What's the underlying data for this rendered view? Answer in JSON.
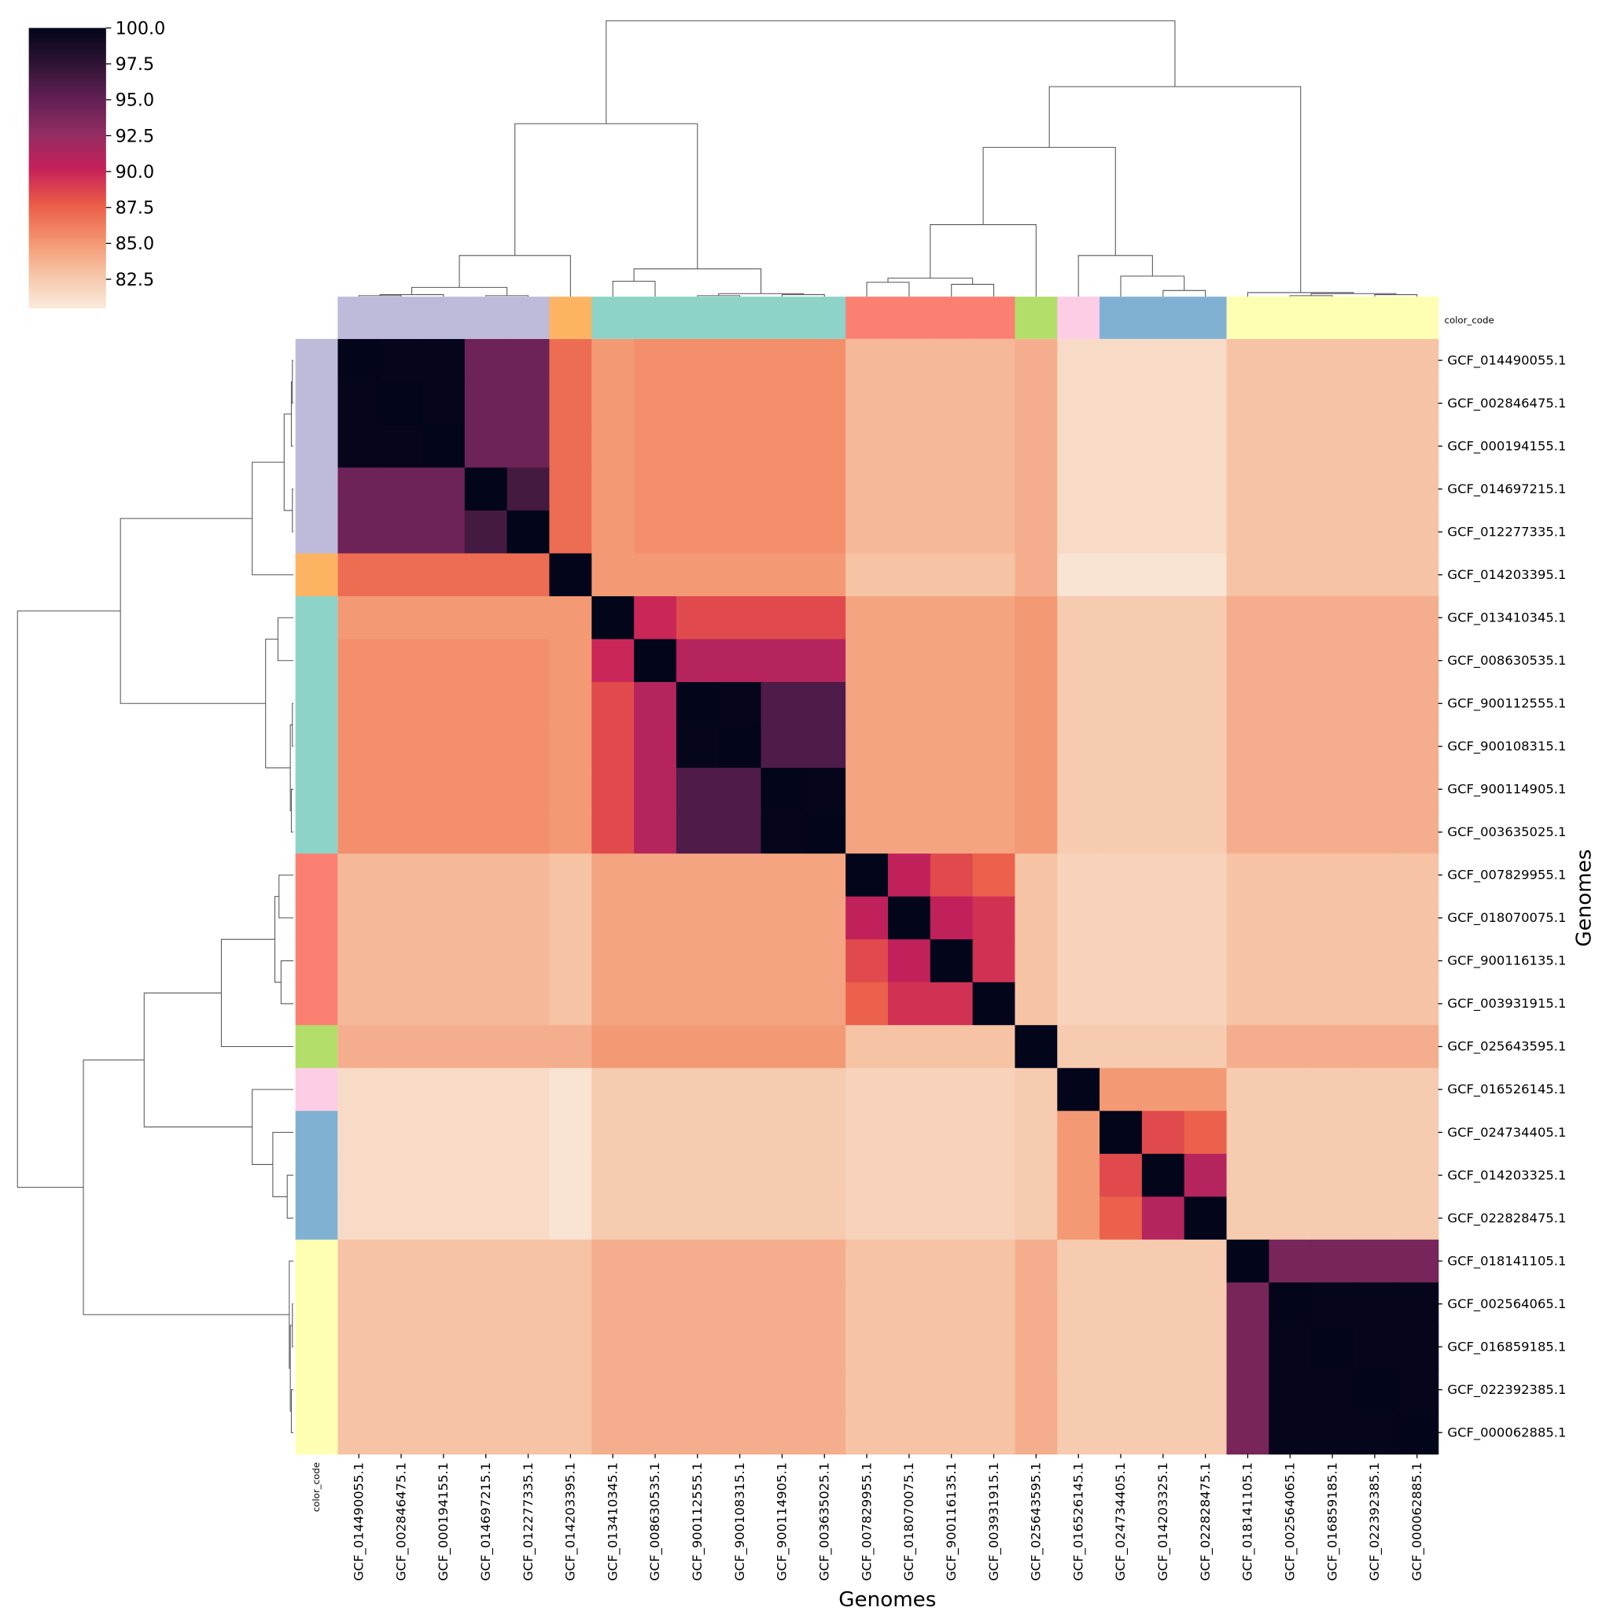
{
  "chart_data": {
    "type": "heatmap",
    "xlabel": "Genomes",
    "ylabel": "Genomes",
    "color_code_label": "color_code",
    "labels": [
      "GCF_014490055.1",
      "GCF_002846475.1",
      "GCF_000194155.1",
      "GCF_014697215.1",
      "GCF_012277335.1",
      "GCF_014203395.1",
      "GCF_013410345.1",
      "GCF_008630535.1",
      "GCF_900112555.1",
      "GCF_900108315.1",
      "GCF_900114905.1",
      "GCF_003635025.1",
      "GCF_007829955.1",
      "GCF_018070075.1",
      "GCF_900116135.1",
      "GCF_003931915.1",
      "GCF_025643595.1",
      "GCF_016526145.1",
      "GCF_024734405.1",
      "GCF_014203325.1",
      "GCF_022828475.1",
      "GCF_018141105.1",
      "GCF_002564065.1",
      "GCF_016859185.1",
      "GCF_022392385.1",
      "GCF_000062885.1"
    ],
    "group_colors": [
      "#bebada",
      "#bebada",
      "#bebada",
      "#bebada",
      "#bebada",
      "#fdb462",
      "#8dd3c7",
      "#8dd3c7",
      "#8dd3c7",
      "#8dd3c7",
      "#8dd3c7",
      "#8dd3c7",
      "#fb8072",
      "#fb8072",
      "#fb8072",
      "#fb8072",
      "#b3de69",
      "#fccde5",
      "#80b1d3",
      "#80b1d3",
      "#80b1d3",
      "#ffffb3",
      "#ffffb3",
      "#ffffb3",
      "#ffffb3",
      "#ffffb3"
    ],
    "colormap": [
      "#faebdd",
      "#f6c4a6",
      "#f3926c",
      "#ea5a46",
      "#c6205a",
      "#912d63",
      "#611f53",
      "#2e1435",
      "#03051a"
    ],
    "clim": [
      80.5,
      100
    ],
    "cticks": [
      {
        "value": 82.5,
        "label": "82.5"
      },
      {
        "value": 85,
        "label": "85.0"
      },
      {
        "value": 87.5,
        "label": "87.5"
      },
      {
        "value": 90,
        "label": "90.0"
      },
      {
        "value": 92.5,
        "label": "92.5"
      },
      {
        "value": 95,
        "label": "95.0"
      },
      {
        "value": 97.5,
        "label": "97.5"
      },
      {
        "value": 100,
        "label": "100.0"
      }
    ],
    "values": [
      [
        100,
        99.9,
        99.9,
        94.5,
        94.5,
        87,
        85,
        85.5,
        85.5,
        85.5,
        85.5,
        85.5,
        83.5,
        83.5,
        83.5,
        83.5,
        84,
        81.5,
        81.5,
        81.5,
        81.5,
        83,
        83,
        83,
        83,
        83
      ],
      [
        99.9,
        100,
        99.9,
        94.5,
        94.5,
        87,
        85,
        85.5,
        85.5,
        85.5,
        85.5,
        85.5,
        83.5,
        83.5,
        83.5,
        83.5,
        84,
        81.5,
        81.5,
        81.5,
        81.5,
        83,
        83,
        83,
        83,
        83
      ],
      [
        99.9,
        99.9,
        100,
        94.5,
        94.5,
        87,
        85,
        85.5,
        85.5,
        85.5,
        85.5,
        85.5,
        83.5,
        83.5,
        83.5,
        83.5,
        84,
        81.5,
        81.5,
        81.5,
        81.5,
        83,
        83,
        83,
        83,
        83
      ],
      [
        94.5,
        94.5,
        94.5,
        100,
        96.5,
        87,
        85,
        85.5,
        85.5,
        85.5,
        85.5,
        85.5,
        83.5,
        83.5,
        83.5,
        83.5,
        84,
        81.5,
        81.5,
        81.5,
        81.5,
        83,
        83,
        83,
        83,
        83
      ],
      [
        94.5,
        94.5,
        94.5,
        96.5,
        100,
        87,
        85,
        85.5,
        85.5,
        85.5,
        85.5,
        85.5,
        83.5,
        83.5,
        83.5,
        83.5,
        84,
        81.5,
        81.5,
        81.5,
        81.5,
        83,
        83,
        83,
        83,
        83
      ],
      [
        87,
        87,
        87,
        87,
        87,
        100,
        85,
        85,
        85,
        85,
        85,
        85,
        83,
        83,
        83,
        83,
        84,
        81,
        81,
        81,
        81,
        83,
        83,
        83,
        83,
        83
      ],
      [
        85,
        85,
        85,
        85,
        85,
        85,
        100,
        90,
        88.5,
        88.5,
        88.5,
        88.5,
        84.5,
        84.5,
        84.5,
        84.5,
        85,
        82.5,
        82.5,
        82.5,
        82.5,
        84,
        84,
        84,
        84,
        84
      ],
      [
        85.5,
        85.5,
        85.5,
        85.5,
        85.5,
        85,
        90,
        100,
        91,
        91,
        91,
        91,
        84.5,
        84.5,
        84.5,
        84.5,
        85,
        82.5,
        82.5,
        82.5,
        82.5,
        84,
        84,
        84,
        84,
        84
      ],
      [
        85.5,
        85.5,
        85.5,
        85.5,
        85.5,
        85,
        88.5,
        91,
        100,
        99.9,
        96,
        96,
        84.5,
        84.5,
        84.5,
        84.5,
        85,
        82.5,
        82.5,
        82.5,
        82.5,
        84,
        84,
        84,
        84,
        84
      ],
      [
        85.5,
        85.5,
        85.5,
        85.5,
        85.5,
        85,
        88.5,
        91,
        99.9,
        100,
        96,
        96,
        84.5,
        84.5,
        84.5,
        84.5,
        85,
        82.5,
        82.5,
        82.5,
        82.5,
        84,
        84,
        84,
        84,
        84
      ],
      [
        85.5,
        85.5,
        85.5,
        85.5,
        85.5,
        85,
        88.5,
        91,
        96,
        96,
        100,
        99.9,
        84.5,
        84.5,
        84.5,
        84.5,
        85,
        82.5,
        82.5,
        82.5,
        82.5,
        84,
        84,
        84,
        84,
        84
      ],
      [
        85.5,
        85.5,
        85.5,
        85.5,
        85.5,
        85,
        88.5,
        91,
        96,
        96,
        99.9,
        100,
        84.5,
        84.5,
        84.5,
        84.5,
        85,
        82.5,
        82.5,
        82.5,
        82.5,
        84,
        84,
        84,
        84,
        84
      ],
      [
        83.5,
        83.5,
        83.5,
        83.5,
        83.5,
        83,
        84.5,
        84.5,
        84.5,
        84.5,
        84.5,
        84.5,
        100,
        90.5,
        88.5,
        87.5,
        83,
        82,
        82,
        82,
        82,
        83,
        83,
        83,
        83,
        83
      ],
      [
        83.5,
        83.5,
        83.5,
        83.5,
        83.5,
        83,
        84.5,
        84.5,
        84.5,
        84.5,
        84.5,
        84.5,
        90.5,
        100,
        90.5,
        89.5,
        83,
        82,
        82,
        82,
        82,
        83,
        83,
        83,
        83,
        83
      ],
      [
        83.5,
        83.5,
        83.5,
        83.5,
        83.5,
        83,
        84.5,
        84.5,
        84.5,
        84.5,
        84.5,
        84.5,
        88.5,
        90.5,
        100,
        89.5,
        83,
        82,
        82,
        82,
        82,
        83,
        83,
        83,
        83,
        83
      ],
      [
        83.5,
        83.5,
        83.5,
        83.5,
        83.5,
        83,
        84.5,
        84.5,
        84.5,
        84.5,
        84.5,
        84.5,
        87.5,
        89.5,
        89.5,
        100,
        83,
        82,
        82,
        82,
        82,
        83,
        83,
        83,
        83,
        83
      ],
      [
        84,
        84,
        84,
        84,
        84,
        84,
        85,
        85,
        85,
        85,
        85,
        85,
        83,
        83,
        83,
        83,
        100,
        82.5,
        82.5,
        82.5,
        82.5,
        84,
        84,
        84,
        84,
        84
      ],
      [
        81.5,
        81.5,
        81.5,
        81.5,
        81.5,
        81,
        82.5,
        82.5,
        82.5,
        82.5,
        82.5,
        82.5,
        82,
        82,
        82,
        82,
        82.5,
        100,
        85,
        85,
        85,
        82.5,
        82.5,
        82.5,
        82.5,
        82.5
      ],
      [
        81.5,
        81.5,
        81.5,
        81.5,
        81.5,
        81,
        82.5,
        82.5,
        82.5,
        82.5,
        82.5,
        82.5,
        82,
        82,
        82,
        82,
        82.5,
        85,
        100,
        88.5,
        87.5,
        82.5,
        82.5,
        82.5,
        82.5,
        82.5
      ],
      [
        81.5,
        81.5,
        81.5,
        81.5,
        81.5,
        81,
        82.5,
        82.5,
        82.5,
        82.5,
        82.5,
        82.5,
        82,
        82,
        82,
        82,
        82.5,
        85,
        88.5,
        100,
        91,
        82.5,
        82.5,
        82.5,
        82.5,
        82.5
      ],
      [
        81.5,
        81.5,
        81.5,
        81.5,
        81.5,
        81,
        82.5,
        82.5,
        82.5,
        82.5,
        82.5,
        82.5,
        82,
        82,
        82,
        82,
        82.5,
        85,
        87.5,
        91,
        100,
        82.5,
        82.5,
        82.5,
        82.5,
        82.5
      ],
      [
        83,
        83,
        83,
        83,
        83,
        83,
        84,
        84,
        84,
        84,
        84,
        84,
        83,
        83,
        83,
        83,
        84,
        82.5,
        82.5,
        82.5,
        82.5,
        100,
        94,
        94,
        94,
        94
      ],
      [
        83,
        83,
        83,
        83,
        83,
        83,
        84,
        84,
        84,
        84,
        84,
        84,
        83,
        83,
        83,
        83,
        84,
        82.5,
        82.5,
        82.5,
        82.5,
        94,
        100,
        99.9,
        99.9,
        99.9
      ],
      [
        83,
        83,
        83,
        83,
        83,
        83,
        84,
        84,
        84,
        84,
        84,
        84,
        83,
        83,
        83,
        83,
        84,
        82.5,
        82.5,
        82.5,
        82.5,
        94,
        99.9,
        100,
        99.9,
        99.9
      ],
      [
        83,
        83,
        83,
        83,
        83,
        83,
        84,
        84,
        84,
        84,
        84,
        84,
        83,
        83,
        83,
        83,
        84,
        82.5,
        82.5,
        82.5,
        82.5,
        94,
        99.9,
        99.9,
        100,
        99.9
      ],
      [
        83,
        83,
        83,
        83,
        83,
        83,
        84,
        84,
        84,
        84,
        84,
        84,
        83,
        83,
        83,
        83,
        84,
        82.5,
        82.5,
        82.5,
        82.5,
        94,
        99.9,
        99.9,
        99.9,
        100
      ]
    ]
  }
}
